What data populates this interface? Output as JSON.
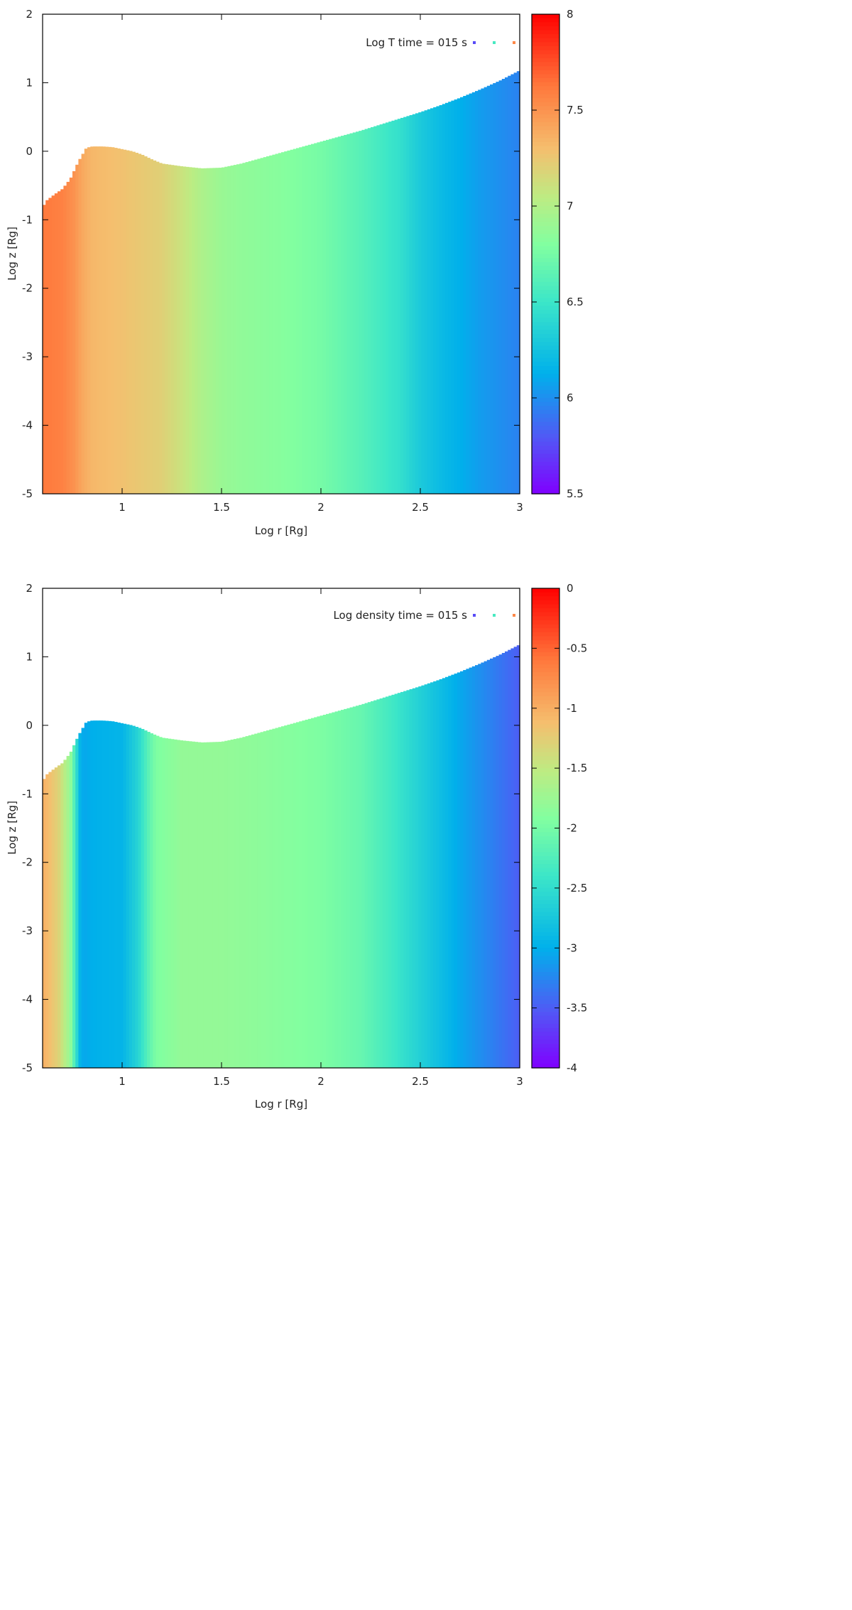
{
  "chart_data": [
    {
      "type": "heatmap",
      "title": "",
      "key_text": "Log T time = 015 s",
      "xlabel": "Log r [Rg]",
      "ylabel": "Log z [Rg]",
      "xlim": [
        0.6,
        3.0
      ],
      "ylim": [
        -5,
        2
      ],
      "x_ticks": [
        "1",
        "1.5",
        "2",
        "2.5",
        "3"
      ],
      "x_tick_values": [
        1,
        1.5,
        2,
        2.5,
        3
      ],
      "y_ticks": [
        "2",
        "1",
        "0",
        "-1",
        "-2",
        "-3",
        "-4",
        "-5"
      ],
      "y_tick_values": [
        2,
        1,
        0,
        -1,
        -2,
        -3,
        -4,
        -5
      ],
      "colorbar": {
        "range": [
          5.5,
          8
        ],
        "ticks": [
          "8",
          "7.5",
          "7",
          "6.5",
          "6",
          "5.5"
        ],
        "tick_values": [
          8,
          7.5,
          7,
          6.5,
          6,
          5.5
        ]
      },
      "surface": {
        "x": [
          0.6,
          0.62,
          0.66,
          0.7,
          0.74,
          0.78,
          0.82,
          0.85,
          0.9,
          0.95,
          1.0,
          1.05,
          1.1,
          1.15,
          1.2,
          1.3,
          1.4,
          1.5,
          1.6,
          1.7,
          1.8,
          1.9,
          2.0,
          2.1,
          2.2,
          2.3,
          2.4,
          2.5,
          2.6,
          2.7,
          2.8,
          2.9,
          3.0
        ],
        "z": [
          -0.82,
          -0.72,
          -0.63,
          -0.55,
          -0.4,
          -0.15,
          0.05,
          0.07,
          0.07,
          0.06,
          0.03,
          0.0,
          -0.05,
          -0.12,
          -0.18,
          -0.22,
          -0.25,
          -0.24,
          -0.18,
          -0.1,
          -0.02,
          0.06,
          0.14,
          0.22,
          0.3,
          0.39,
          0.48,
          0.57,
          0.67,
          0.78,
          0.9,
          1.03,
          1.18
        ]
      },
      "profile": {
        "x": [
          0.6,
          0.7,
          0.76,
          0.8,
          0.85,
          1.0,
          1.2,
          1.3,
          1.4,
          1.5,
          1.6,
          1.8,
          2.0,
          2.2,
          2.4,
          2.5,
          2.6,
          2.8,
          3.0
        ],
        "value": [
          7.62,
          7.58,
          7.5,
          7.4,
          7.33,
          7.28,
          7.2,
          7.1,
          6.98,
          6.9,
          6.86,
          6.82,
          6.75,
          6.62,
          6.45,
          6.3,
          6.2,
          6.05,
          5.95
        ]
      }
    },
    {
      "type": "heatmap",
      "title": "",
      "key_text": "Log density time = 015 s",
      "xlabel": "Log r [Rg]",
      "ylabel": "Log z [Rg]",
      "xlim": [
        0.6,
        3.0
      ],
      "ylim": [
        -5,
        2
      ],
      "x_ticks": [
        "1",
        "1.5",
        "2",
        "2.5",
        "3"
      ],
      "x_tick_values": [
        1,
        1.5,
        2,
        2.5,
        3
      ],
      "y_ticks": [
        "2",
        "1",
        "0",
        "-1",
        "-2",
        "-3",
        "-4",
        "-5"
      ],
      "y_tick_values": [
        2,
        1,
        0,
        -1,
        -2,
        -3,
        -4,
        -5
      ],
      "colorbar": {
        "range": [
          -4,
          0
        ],
        "ticks": [
          "0",
          "-0.5",
          "-1",
          "-1.5",
          "-2",
          "-2.5",
          "-3",
          "-3.5",
          "-4"
        ],
        "tick_values": [
          0,
          -0.5,
          -1,
          -1.5,
          -2,
          -2.5,
          -3,
          -3.5,
          -4
        ]
      },
      "surface": {
        "x": [
          0.6,
          0.62,
          0.66,
          0.7,
          0.74,
          0.78,
          0.82,
          0.85,
          0.9,
          0.95,
          1.0,
          1.05,
          1.1,
          1.15,
          1.2,
          1.3,
          1.4,
          1.5,
          1.6,
          1.7,
          1.8,
          1.9,
          2.0,
          2.1,
          2.2,
          2.3,
          2.4,
          2.5,
          2.6,
          2.7,
          2.8,
          2.9,
          3.0
        ],
        "z": [
          -0.82,
          -0.72,
          -0.63,
          -0.55,
          -0.4,
          -0.15,
          0.05,
          0.07,
          0.07,
          0.06,
          0.03,
          0.0,
          -0.05,
          -0.12,
          -0.18,
          -0.22,
          -0.25,
          -0.24,
          -0.18,
          -0.1,
          -0.02,
          0.06,
          0.14,
          0.22,
          0.3,
          0.39,
          0.48,
          0.57,
          0.67,
          0.78,
          0.9,
          1.03,
          1.18
        ]
      },
      "profile": {
        "x": [
          0.6,
          0.68,
          0.74,
          0.77,
          0.79,
          0.81,
          0.85,
          1.0,
          1.08,
          1.13,
          1.17,
          1.3,
          1.5,
          1.7,
          2.0,
          2.2,
          2.35,
          2.5,
          2.7,
          3.0
        ],
        "value": [
          -1.0,
          -1.3,
          -1.8,
          -2.5,
          -3.0,
          -3.05,
          -3.0,
          -2.95,
          -2.6,
          -2.2,
          -1.95,
          -1.8,
          -1.8,
          -1.85,
          -1.95,
          -2.1,
          -2.35,
          -2.65,
          -3.05,
          -3.5
        ]
      }
    }
  ]
}
